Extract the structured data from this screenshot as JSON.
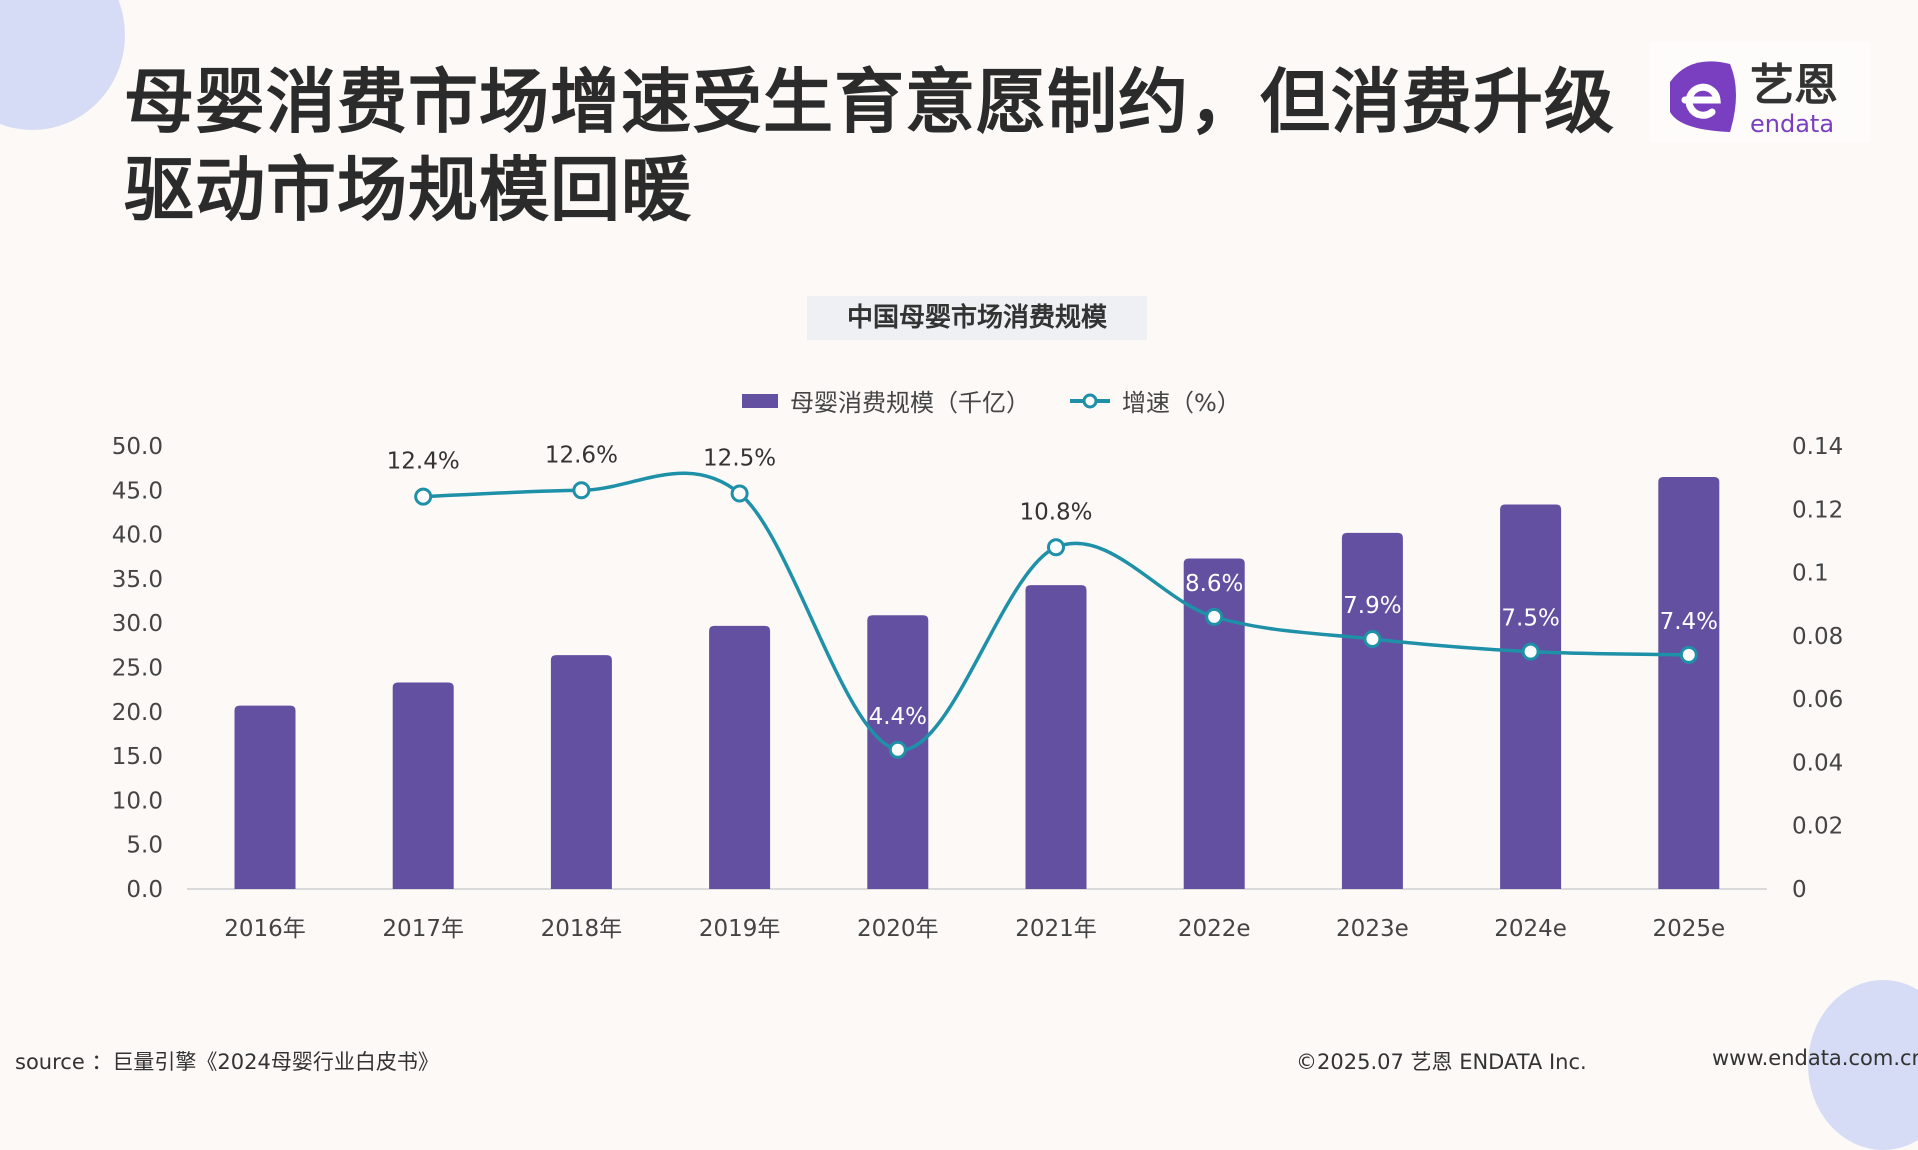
{
  "title": "母婴消费市场增速受生育意愿制约，但消费升级驱动市场规模回暖",
  "logo": {
    "cn": "艺恩",
    "en": "endata"
  },
  "footer": {
    "source": "source ：巨量引擎《2024母婴行业白皮书》",
    "copyright": "©2025.07  艺恩 ENDATA Inc.",
    "website": "www.endata.com.cn"
  },
  "colors": {
    "bar": "#6450a0",
    "line": "#1e90a8",
    "background": "#fcf9f7"
  },
  "chart_data": {
    "type": "bar+line",
    "title": "中国母婴市场消费规模",
    "categories": [
      "2016年",
      "2017年",
      "2018年",
      "2019年",
      "2020年",
      "2021年",
      "2022e",
      "2023e",
      "2024e",
      "2025e"
    ],
    "series": [
      {
        "name": "母婴消费规模（千亿）",
        "type": "bar",
        "axis": "left",
        "values": [
          20.7,
          23.3,
          26.4,
          29.7,
          30.9,
          34.3,
          37.3,
          40.2,
          43.4,
          46.5
        ]
      },
      {
        "name": "增速（%）",
        "type": "line",
        "axis": "right",
        "values": [
          null,
          0.124,
          0.126,
          0.125,
          0.044,
          0.108,
          0.086,
          0.079,
          0.075,
          0.074
        ],
        "labels": [
          null,
          "12.4%",
          "12.6%",
          "12.5%",
          "4.4%",
          "10.8%",
          "8.6%",
          "7.9%",
          "7.5%",
          "7.4%"
        ]
      }
    ],
    "left_axis": {
      "ylim": [
        0,
        50
      ],
      "ticks": [
        "0.0",
        "5.0",
        "10.0",
        "15.0",
        "20.0",
        "25.0",
        "30.0",
        "35.0",
        "40.0",
        "45.0",
        "50.0"
      ]
    },
    "right_axis": {
      "ylim": [
        0,
        0.14
      ],
      "ticks": [
        "0",
        "0.02",
        "0.04",
        "0.06",
        "0.08",
        "0.1",
        "0.12",
        "0.14"
      ]
    },
    "legend_placement": "top",
    "grid": false
  }
}
